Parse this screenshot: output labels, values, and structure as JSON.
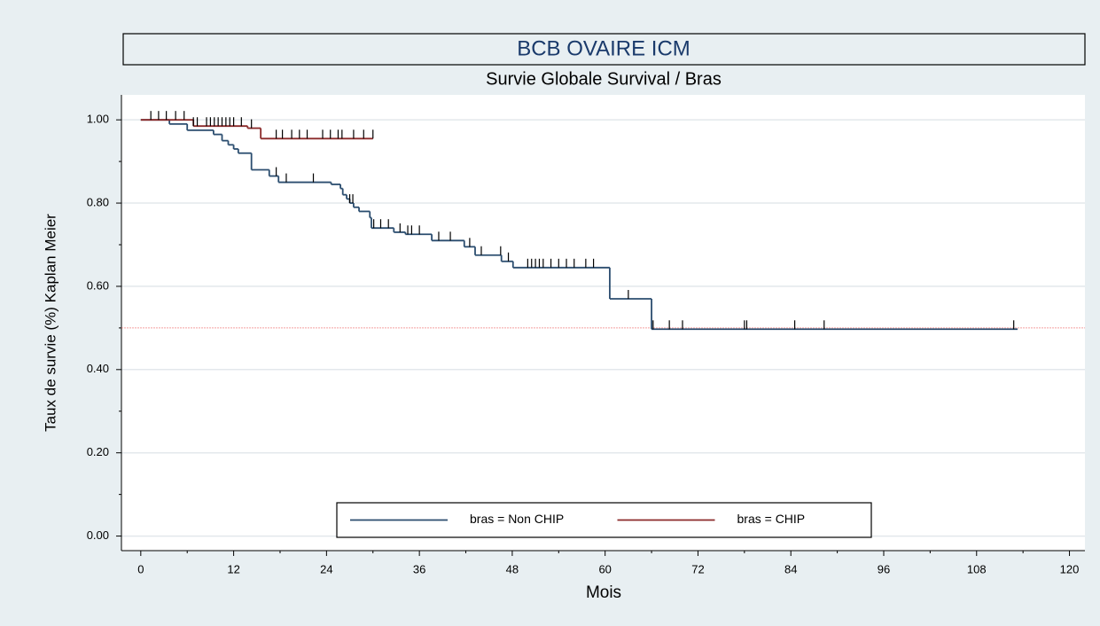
{
  "chart_data": {
    "type": "step",
    "title": "BCB OVAIRE ICM",
    "subtitle": "Survie Globale Survival / Bras",
    "x_label": "Mois",
    "y_label": "Taux de survie (%) Kaplan Meier",
    "xlim": [
      -2.5,
      122
    ],
    "ylim": [
      -0.035,
      1.06
    ],
    "xticks": [
      0,
      12,
      24,
      36,
      48,
      60,
      72,
      84,
      96,
      108,
      120
    ],
    "xminorticks": [
      6,
      18,
      30,
      42,
      54,
      66,
      78,
      90,
      102,
      114
    ],
    "yticks": [
      {
        "value": 0,
        "label": "0.00"
      },
      {
        "value": 0.2,
        "label": "0.20"
      },
      {
        "value": 0.4,
        "label": "0.40"
      },
      {
        "value": 0.6,
        "label": "0.60"
      },
      {
        "value": 0.8,
        "label": "0.80"
      },
      {
        "value": 1,
        "label": "1.00"
      }
    ],
    "yminorticks": [
      0.1,
      0.3,
      0.5,
      0.7,
      0.9
    ],
    "grid": true,
    "reference_line": {
      "value": 0.5,
      "color": "#f08080"
    },
    "legend": "bottom",
    "series": [
      {
        "name": "bras = Non CHIP",
        "color": "#2b4d6f",
        "x": [
          0,
          3.7,
          6,
          9.4,
          10.5,
          11.3,
          12,
          12.6,
          14.3,
          16.6,
          17.8,
          24.6,
          25.8,
          26.1,
          26.6,
          27,
          27.5,
          28.2,
          29.6,
          29.8,
          32.7,
          34.2,
          37.6,
          41.8,
          43.2,
          46.6,
          48.1,
          60.6,
          66,
          113.3
        ],
        "values": [
          1,
          0.99,
          0.975,
          0.965,
          0.95,
          0.94,
          0.93,
          0.92,
          0.88,
          0.865,
          0.85,
          0.845,
          0.835,
          0.82,
          0.81,
          0.8,
          0.79,
          0.78,
          0.765,
          0.74,
          0.73,
          0.725,
          0.71,
          0.695,
          0.675,
          0.66,
          0.645,
          0.57,
          0.497,
          0.497
        ],
        "censored": [
          17.5,
          18.8,
          22.3,
          27,
          27.4,
          30.1,
          31,
          32,
          33.5,
          34.5,
          35,
          36,
          38.5,
          40,
          42.5,
          44,
          46.5,
          47.5,
          50,
          50.5,
          51,
          51.5,
          52,
          53,
          54,
          55,
          56,
          57.5,
          58.5,
          63,
          66.2,
          68.3,
          70,
          78,
          78.3,
          84.5,
          88.3,
          112.8
        ]
      },
      {
        "name": "bras = CHIP",
        "color": "#8b2a2a",
        "x": [
          0,
          6.8,
          13.8,
          15.5,
          30
        ],
        "values": [
          1,
          0.985,
          0.98,
          0.955,
          0.955
        ],
        "censored": [
          1.3,
          2.3,
          3.3,
          4.5,
          5.6,
          6.8,
          7.3,
          8.5,
          9,
          9.5,
          10,
          10.5,
          11,
          11.5,
          12,
          13,
          14.3,
          17.5,
          18.3,
          19.5,
          20.5,
          21.5,
          23.5,
          24.5,
          25.5,
          26,
          27.5,
          28.8,
          30
        ]
      }
    ]
  }
}
